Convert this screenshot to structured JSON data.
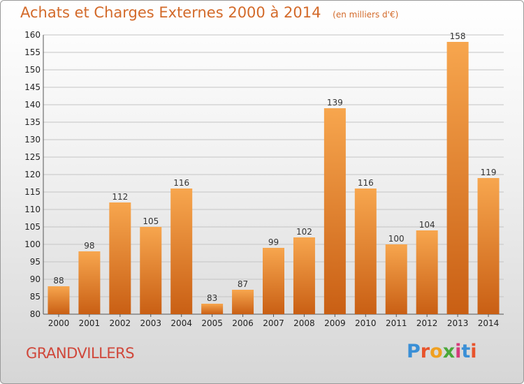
{
  "header": {
    "title": "Achats et Charges Externes 2000 à 2014",
    "subtitle": "(en milliers d'€)"
  },
  "footer": {
    "commune": "GRANDVILLERS",
    "logo_text": "Proxiti"
  },
  "colors": {
    "bar_top": "#f7a64e",
    "bar_bottom": "#c95f14",
    "title": "#d36a2a",
    "commune": "#d0473a",
    "logo": [
      "#3a8fd6",
      "#e8532b",
      "#f0a020",
      "#4aa83a",
      "#d63a7a",
      "#3a8fd6",
      "#e8532b"
    ]
  },
  "chart_data": {
    "type": "bar",
    "title": "Achats et Charges Externes 2000 à 2014",
    "subtitle": "(en milliers d'€)",
    "categories": [
      "2000",
      "2001",
      "2002",
      "2003",
      "2004",
      "2005",
      "2006",
      "2007",
      "2008",
      "2009",
      "2010",
      "2011",
      "2012",
      "2013",
      "2014"
    ],
    "values": [
      88,
      98,
      112,
      105,
      116,
      83,
      87,
      99,
      102,
      139,
      116,
      100,
      104,
      158,
      119
    ],
    "ylim": [
      80,
      160
    ],
    "yticks": [
      80,
      85,
      90,
      95,
      100,
      105,
      110,
      115,
      120,
      125,
      130,
      135,
      140,
      145,
      150,
      155,
      160
    ],
    "grid": true,
    "legend": false
  }
}
